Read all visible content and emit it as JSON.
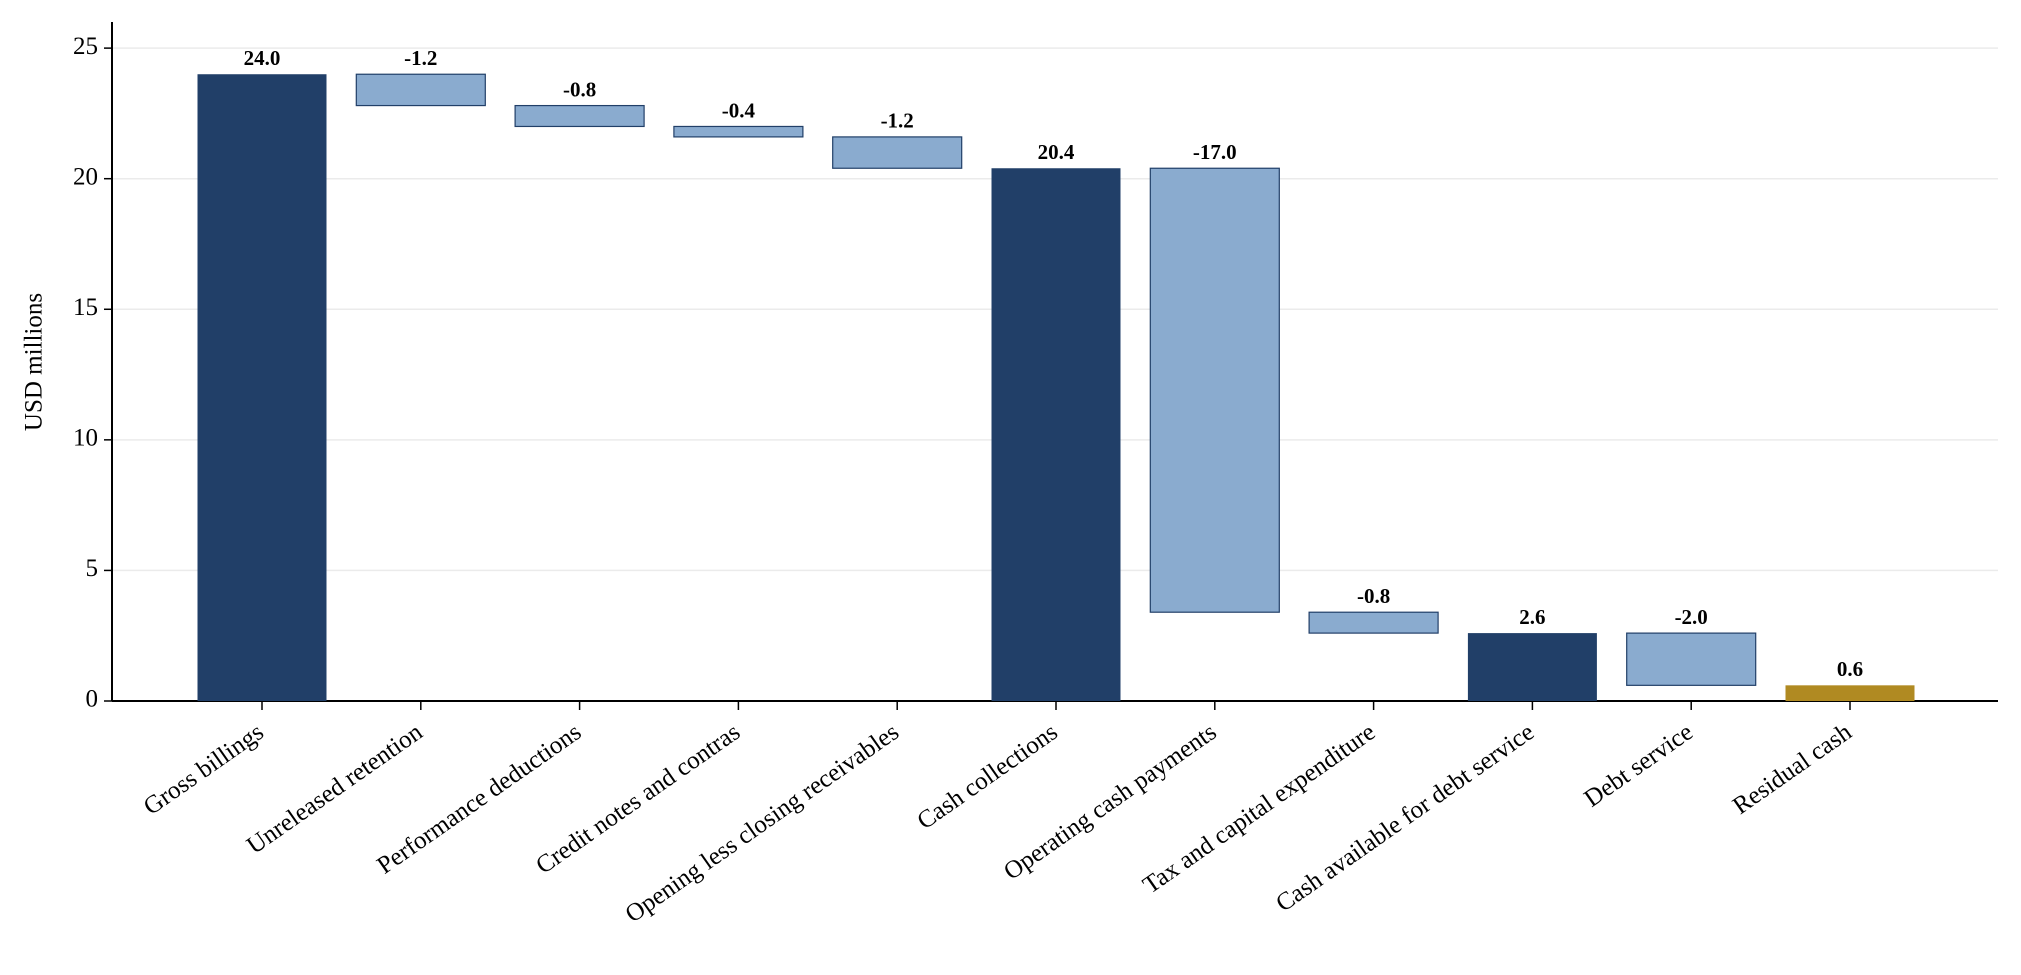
{
  "chart_data": {
    "type": "waterfall",
    "ylabel": "USD millions",
    "categories": [
      "Gross billings",
      "Unreleased retention",
      "Performance deductions",
      "Credit notes and contras",
      "Opening less closing receivables",
      "Cash collections",
      "Operating cash payments",
      "Tax and capital expenditure",
      "Cash available for debt service",
      "Debt service",
      "Residual cash"
    ],
    "values": [
      24.0,
      -1.2,
      -0.8,
      -0.4,
      -1.2,
      20.4,
      -17.0,
      -0.8,
      2.6,
      -2.0,
      0.6
    ],
    "value_labels": [
      "24.0",
      "-1.2",
      "-0.8",
      "-0.4",
      "-1.2",
      "20.4",
      "-17.0",
      "-0.8",
      "2.6",
      "-2.0",
      "0.6"
    ],
    "colors": [
      "#213f68",
      "#8aabcf",
      "#8aabcf",
      "#8aabcf",
      "#8aabcf",
      "#213f68",
      "#8aabcf",
      "#8aabcf",
      "#213f68",
      "#8aabcf",
      "#b08a22"
    ],
    "delta_color": "#8aabcf",
    "ylim": [
      0,
      26
    ],
    "yticks": [
      0,
      5,
      10,
      15,
      20,
      25
    ],
    "grid": true
  }
}
